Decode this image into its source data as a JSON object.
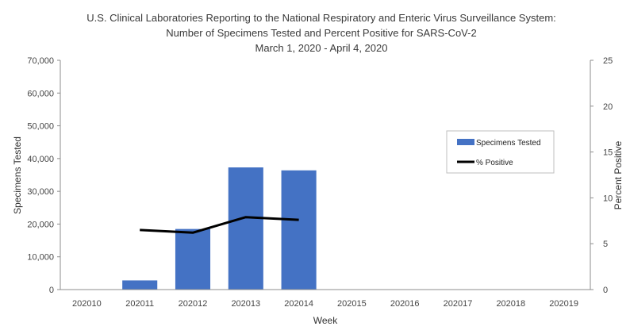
{
  "chart_data": {
    "type": "bar",
    "title_lines": [
      "U.S. Clinical Laboratories Reporting to the National Respiratory and Enteric Virus Surveillance System:",
      "Number of Specimens Tested and Percent Positive for SARS-CoV-2",
      "March 1, 2020 - April 4, 2020"
    ],
    "xlabel": "Week",
    "ylabel_left": "Specimens Tested",
    "ylabel_right": "Percent Positive",
    "categories": [
      "202010",
      "202011",
      "202012",
      "202013",
      "202014",
      "202015",
      "202016",
      "202017",
      "202018",
      "202019"
    ],
    "ylim_left": [
      0,
      70000
    ],
    "yticks_left": [
      "0",
      "10,000",
      "20,000",
      "30,000",
      "40,000",
      "50,000",
      "60,000",
      "70,000"
    ],
    "ylim_right": [
      0,
      25
    ],
    "yticks_right": [
      "0",
      "5",
      "10",
      "15",
      "20",
      "25"
    ],
    "grid": false,
    "legend_position": "right",
    "series": [
      {
        "name": "Specimens Tested",
        "kind": "bar",
        "axis": "left",
        "color": "#4472C4",
        "values": [
          0,
          2800,
          18500,
          37300,
          36400,
          null,
          null,
          null,
          null,
          null
        ]
      },
      {
        "name": "% Positive",
        "kind": "line",
        "axis": "right",
        "color": "#000000",
        "values": [
          null,
          6.5,
          6.2,
          7.9,
          7.6,
          null,
          null,
          null,
          null,
          null
        ]
      }
    ]
  }
}
